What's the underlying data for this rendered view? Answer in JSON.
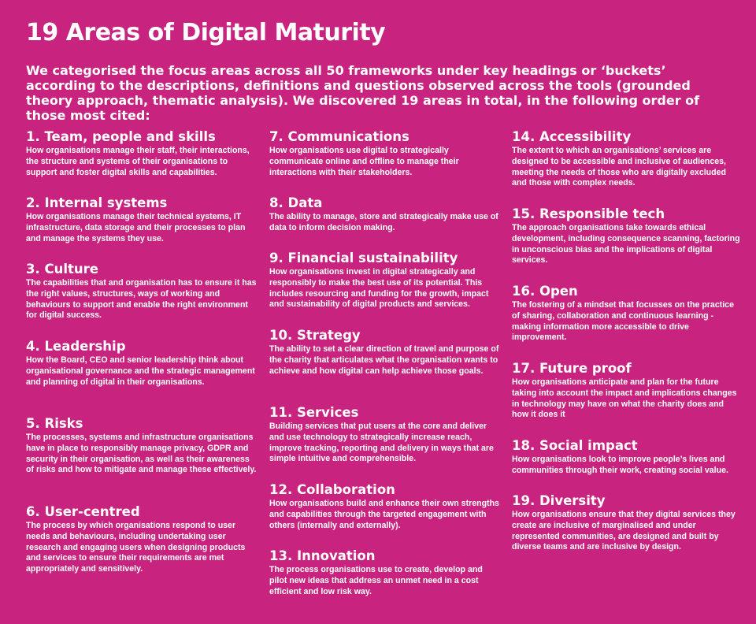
{
  "title": "19 Areas of Digital Maturity",
  "intro": "We categorised the focus areas across all 50 frameworks under key headings or ‘buckets’ according to the descriptions, definitions and questions observed across the tools (grounded theory approach, thematic analysis). We discovered 19 areas in total, in the following order of those most cited:",
  "areas": [
    {
      "title": "1. Team, people and skills",
      "desc": "How organisations manage their staff, their interactions, the structure and systems of their organisations to support and foster digital skills and capabilities."
    },
    {
      "title": "2. Internal systems",
      "desc": "How organisations manage their technical systems, IT infrastructure, data storage and their processes to plan and manage the systems they use."
    },
    {
      "title": "3. Culture",
      "desc": "The capabilities that and organisation has to ensure it has the right values, structures, ways of working and behaviours to support and enable the right environment for digital success."
    },
    {
      "title": "4. Leadership",
      "desc": "How the Board, CEO and senior leadership think about organisational governance and the strategic management and planning of digital in their organisations."
    },
    {
      "title": "5. Risks",
      "desc": "The processes, systems and infrastructure organisations have in place to responsibly manage privacy, GDPR and security in their organisation, as well as their awareness of risks and how to mitigate and manage these effectively."
    },
    {
      "title": "6. User-centred",
      "desc": "The process by which organisations respond to user needs and behaviours, including undertaking user research and engaging users when designing products and services to ensure their requirements are met appropriately and sensitively."
    },
    {
      "title": "7. Communications",
      "desc": "How organisations use digital to strategically communicate online and offline to manage their interactions with their stakeholders."
    },
    {
      "title": "8. Data",
      "desc": "The ability to manage, store and strategically make use of data to inform decision making."
    },
    {
      "title": "9. Financial sustainability",
      "desc": "How organisations invest in digital strategically and responsibly to make the best use of its potential. This includes resourcing and funding for the growth, impact and sustainability of digital products and services."
    },
    {
      "title": "10. Strategy",
      "desc": "The ability to set a clear direction of travel and purpose of the charity that articulates what the organisation wants to achieve and how digital can help achieve those goals."
    },
    {
      "title": "11. Services",
      "desc": "Building services that put users at the core and deliver and use technology to strategically increase reach, improve tracking, reporting and delivery in ways that are simple intuitive and comprehensible."
    },
    {
      "title": "12. Collaboration",
      "desc": "How organisations build and enhance their own strengths and capabilities through the targeted engagement with others (internally and externally)."
    },
    {
      "title": "13. Innovation",
      "desc": "The process organisations use to create, develop and pilot new ideas that address an unmet need in a cost efficient and low risk way."
    },
    {
      "title": "14. Accessibility",
      "desc": "The extent to which an organisations’ services are designed to be accessible and inclusive of audiences, meeting the needs of those who are digitally excluded and those with complex needs."
    },
    {
      "title": "15. Responsible tech",
      "desc": "The approach organisations take towards ethical development, including consequence scanning, factoring in unconscious bias and the implications of digital services."
    },
    {
      "title": "16. Open",
      "desc": "The fostering of a mindset that focusses on the practice of sharing, collaboration and continuous learning - making information more accessible to drive improvement."
    },
    {
      "title": "17. Future proof",
      "desc": "How organisations anticipate and plan for the future taking into account the impact and implications changes in technology may have on what the charity does and how it does it"
    },
    {
      "title": "18. Social impact",
      "desc": "How organisations look to improve people’s lives and communities through their work, creating social value."
    },
    {
      "title": "19. Diversity",
      "desc": "How organisations ensure that they digital services they create are inclusive of marginalised and under represented communities, are designed and built by diverse teams and are  inclusive by design."
    }
  ]
}
